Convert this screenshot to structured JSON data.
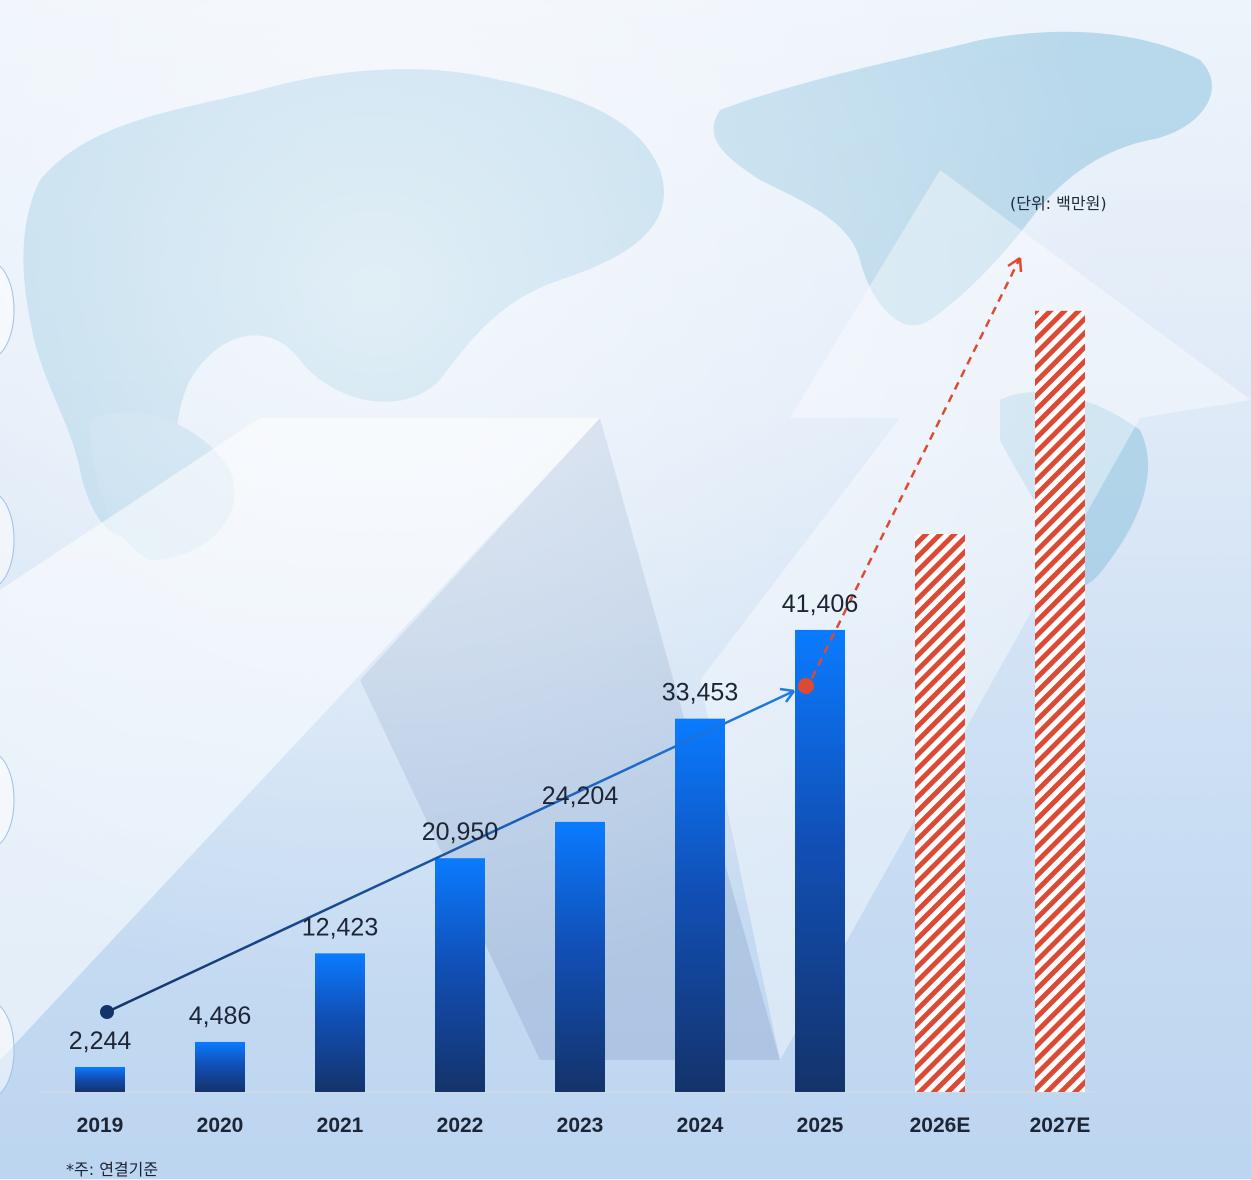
{
  "chart_data": {
    "type": "bar",
    "categories": [
      "2019",
      "2020",
      "2021",
      "2022",
      "2023",
      "2024",
      "2025",
      "2026E",
      "2027E"
    ],
    "values": [
      2244,
      4486,
      12423,
      20950,
      24204,
      33453,
      41406,
      null,
      null
    ],
    "value_labels": [
      "2,244",
      "4,486",
      "12,423",
      "20,950",
      "24,204",
      "33,453",
      "41,406",
      "",
      ""
    ],
    "estimated_values": [
      null,
      null,
      null,
      null,
      null,
      null,
      null,
      50000,
      70000
    ],
    "unit": "(단위: 백만원)",
    "ylim": [
      0,
      75000
    ],
    "grid": false,
    "colors": {
      "actual_top": "#0a7bff",
      "actual_bottom": "#14336a",
      "estimate_stripe": "#dc4a35",
      "trend_solid_start": "#14336a",
      "trend_solid_end": "#1f7be8",
      "trend_dashed": "#dc4a35"
    }
  },
  "footnote": "*주: 연결기준"
}
